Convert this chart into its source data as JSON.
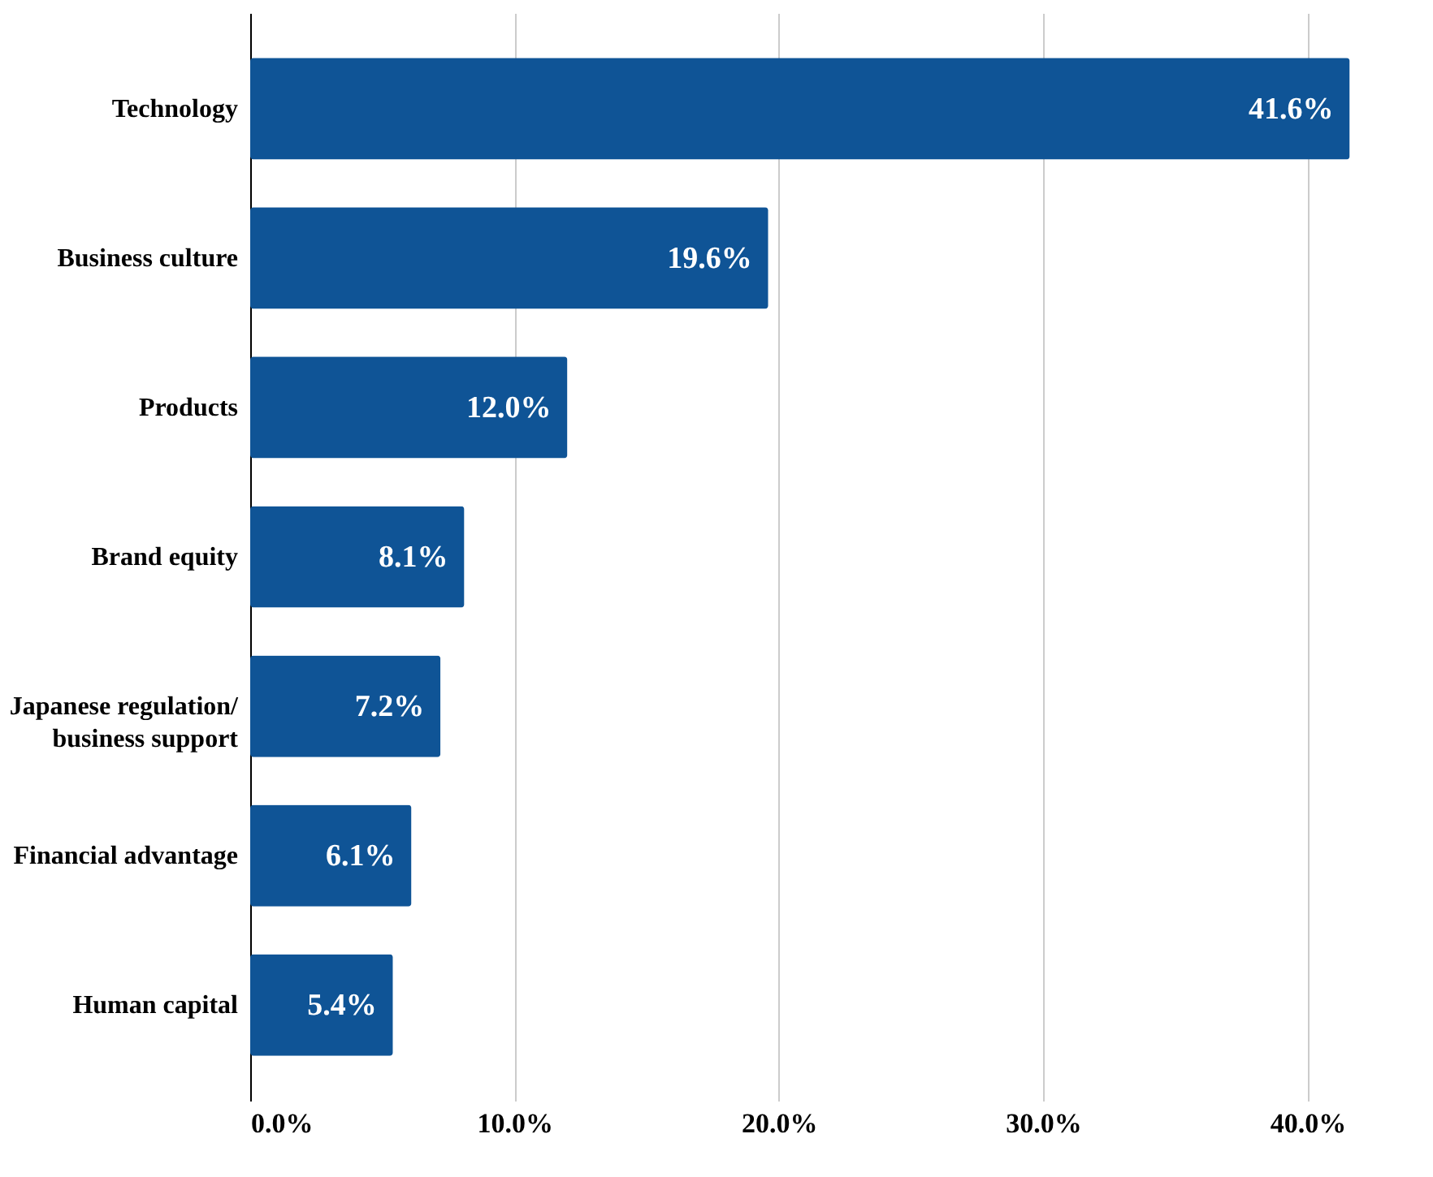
{
  "chart_data": {
    "type": "bar",
    "orientation": "horizontal",
    "categories": [
      "Technology",
      "Business culture",
      "Products",
      "Brand equity",
      "Japanese regulation/\nbusiness support",
      "Financial advantage",
      "Human capital"
    ],
    "values": [
      41.6,
      19.6,
      12.0,
      8.1,
      7.2,
      6.1,
      5.4
    ],
    "value_labels": [
      "41.6%",
      "19.6%",
      "12.0%",
      "8.1%",
      "7.2%",
      "6.1%",
      "5.4%"
    ],
    "color": "#0f5496",
    "xlim": [
      0,
      41.8
    ],
    "xticks": [
      {
        "value": 0,
        "label": "0.0%"
      },
      {
        "value": 10,
        "label": "10.0%"
      },
      {
        "value": 20,
        "label": "20.0%"
      },
      {
        "value": 30,
        "label": "30.0%"
      },
      {
        "value": 40,
        "label": "40.0%"
      }
    ],
    "grid": "x"
  }
}
